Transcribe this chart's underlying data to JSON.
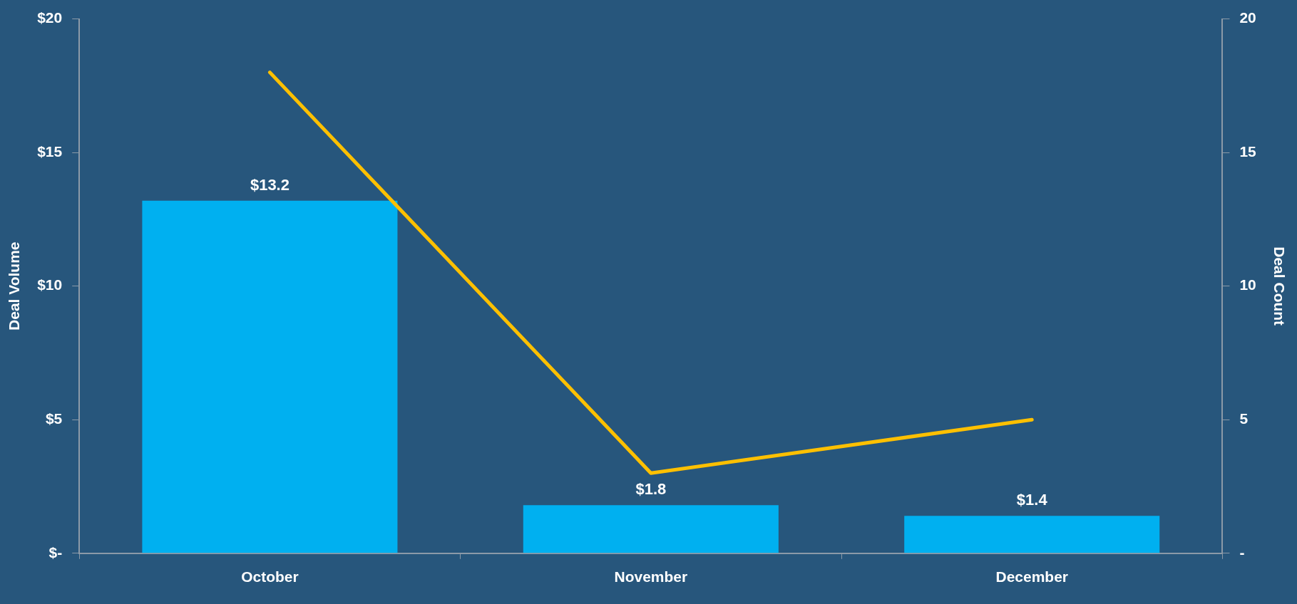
{
  "chart_data": {
    "type": "bar",
    "categories": [
      "October",
      "November",
      "December"
    ],
    "ylabel": "Deal Volume",
    "y2label": "Deal Count",
    "series": [
      {
        "color": "#00b0f0",
        "values": [
          13.2,
          1.8,
          1.4
        ],
        "value_labels": [
          "$13.2",
          "$1.8",
          "$1.4"
        ]
      },
      {
        "type": "line",
        "axis": "y2",
        "color": "#ffc000",
        "values": [
          18,
          3,
          5
        ],
        "marker": "none"
      }
    ],
    "ylim": [
      0,
      20
    ],
    "yticks": [
      {
        "value": 0,
        "label": "$-"
      },
      {
        "value": 5,
        "label": "$5"
      },
      {
        "value": 10,
        "label": "$10"
      },
      {
        "value": 15,
        "label": "$15"
      },
      {
        "value": 20,
        "label": "$20"
      }
    ],
    "y2lim": [
      0,
      20
    ],
    "y2ticks": [
      {
        "value": 0,
        "label": "-"
      },
      5,
      10,
      15,
      20
    ],
    "grid": false,
    "legend": false
  }
}
